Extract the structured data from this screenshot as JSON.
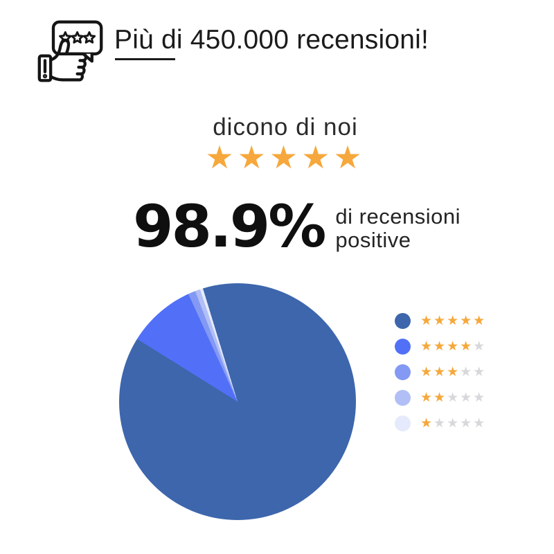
{
  "page": {
    "background": "#ffffff"
  },
  "header": {
    "title": "Più di 450.000 recensioni!",
    "icon": "review-badge-thumbs-up-icon"
  },
  "subheader": {
    "label": "dicono di noi",
    "stars_count": 5,
    "stars_text": "★★★★★"
  },
  "stat": {
    "value": "98.9%",
    "caption_lines": [
      "di recensioni",
      "positive"
    ]
  },
  "chart_data": {
    "type": "pie",
    "title": "",
    "legend_position": "right",
    "unit": "percent",
    "start_angle_deg": -17,
    "slices": [
      {
        "label": "5★",
        "stars": 5,
        "percent": 88.6,
        "color": "#3D66AC"
      },
      {
        "label": "4★",
        "stars": 4,
        "percent": 9.3,
        "color": "#5170F7"
      },
      {
        "label": "3★",
        "stars": 3,
        "percent": 1.0,
        "color": "#8399F3"
      },
      {
        "label": "2★",
        "stars": 2,
        "percent": 0.7,
        "color": "#B1BFF6"
      },
      {
        "label": "1★",
        "stars": 1,
        "percent": 0.4,
        "color": "#E5EAFC"
      }
    ]
  },
  "colors": {
    "star_filled": "#F6A83C",
    "star_empty": "#D8D8DC",
    "text_dark": "#1B1B1B"
  }
}
